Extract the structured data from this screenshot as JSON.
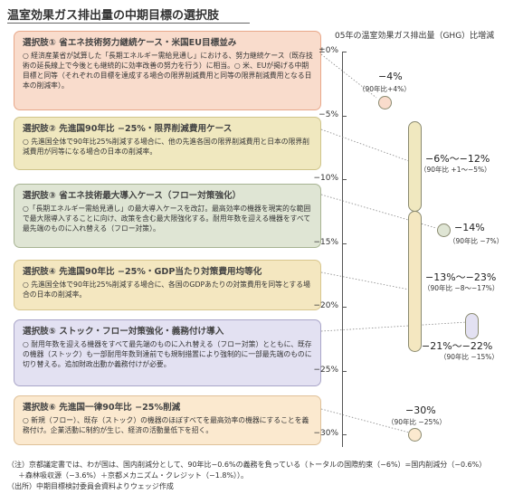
{
  "title": "温室効果ガス排出量の中期目標の選択肢",
  "axis": {
    "title": "05年の温室効果ガス排出量（GHG）比増減",
    "ticks": [
      "±0%",
      "−5%",
      "−10%",
      "−15%",
      "−20%",
      "−25%",
      "−30%"
    ]
  },
  "colors": {
    "opt1_fill": "#f9dccc",
    "opt1_border": "#e8a88a",
    "opt2_fill": "#f0e8bf",
    "opt2_border": "#cfc48a",
    "opt3_fill": "#dfe5d4",
    "opt3_border": "#a7b392",
    "opt4_fill": "#f4e7c0",
    "opt4_border": "#d8c68d",
    "opt5_fill": "#e3e1f2",
    "opt5_border": "#a9a5c8",
    "opt6_fill": "#fbe9cf",
    "opt6_border": "#dfc199"
  },
  "options": [
    {
      "title": "選択肢① 省エネ技術努力継続ケース・米国EU目標並み",
      "desc": "○ 経済産業省が試算した「長期エネルギー需給見通し」における、努力継続ケース（既存技術の延長線上で今後とも継続的に効率改善の努力を行う）に相当。○ 米、EUが掲げる中期目標と同等（それぞれの目標を達成する場合の限界削減費用と同等の限界削減費用となる日本の削減率）。",
      "value": "−4%",
      "sub": "（90年比+4%）"
    },
    {
      "title": "選択肢② 先進国90年比 −25%・限界削減費用ケース",
      "desc": "○ 先進国全体で90年比25%削減する場合に、他の先進各国の限界削減費用と日本の限界削減費用が同等になる場合の日本の削減率。",
      "value": "−6%〜−12%",
      "sub": "（90年比 +1〜−5%）"
    },
    {
      "title": "選択肢③ 省エネ技術最大導入ケース（フロー対策強化）",
      "desc": "○「長期エネルギー需給見通し」の最大導入ケースを改訂。最高効率の機器を現実的な範囲で最大限導入することに向け、政策を含む最大限強化する。耐用年数を迎える機器をすべて最先端のものに入れ替える（フロー対策）。",
      "value": "−14%",
      "sub": "（90年比 −7%）"
    },
    {
      "title": "選択肢④ 先進国90年比 −25%・GDP当たり対策費用均等化",
      "desc": "○ 先進国全体で90年比25%削減する場合に、各国のGDPあたりの対策費用を同等とする場合の日本の削減率。",
      "value": "−13%〜−23%",
      "sub": "（90年比 −8〜−17%）"
    },
    {
      "title": "選択肢⑤ ストック・フロー対策強化・義務付け導入",
      "desc": "○ 耐用年数を迎える機器をすべて最先端のものに入れ替える（フロー対策）とともに、既存の機器（ストック）も一部耐用年数到達前でも規制措置により強制的に一部最先端のものに切り替える。追加財政出動か義務付けが必要。",
      "value": "−21%〜−22%",
      "sub": "（90年比 −15%）"
    },
    {
      "title": "選択肢⑥ 先進国一律90年比 −25%削減",
      "desc": "○ 新規（フロー）、既存（ストック）の機器のほぼすべてを最高効率の機器にすることを義務付け。企業活動に制約が生じ、経済の活動量低下を招く。",
      "value": "−30%",
      "sub": "（90年比 −25%）"
    }
  ],
  "ranges": [
    {
      "shape": "circle",
      "from": 4,
      "to": 4
    },
    {
      "shape": "bar",
      "from": 6,
      "to": 12
    },
    {
      "shape": "circle",
      "from": 14,
      "to": 14
    },
    {
      "shape": "bar",
      "from": 13,
      "to": 23
    },
    {
      "shape": "bar",
      "from": 21,
      "to": 22
    },
    {
      "shape": "circle",
      "from": 30,
      "to": 30
    }
  ],
  "footnotes": {
    "note": "（注）京都議定書では、わが国は、国内削減分として、90年比−0.6%の義務を負っている（トータルの国際約束（−6%）=国内削減分（−0.6%）",
    "note2": "＋森林吸収源（−3.6%）＋京都メカニズム・クレジット（−1.8%））。",
    "source": "（出所）中期目標検討委員会資料よりウェッジ作成"
  }
}
